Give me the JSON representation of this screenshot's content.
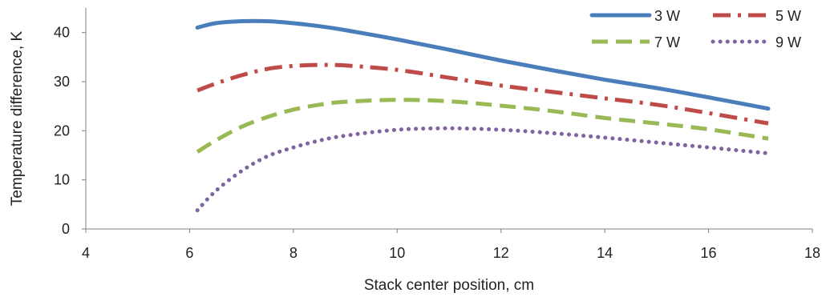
{
  "chart_data": {
    "type": "line",
    "title": "",
    "xlabel": "Stack center position, cm",
    "ylabel": "Temperature difference, K",
    "xlim": [
      4,
      18
    ],
    "ylim": [
      0,
      45
    ],
    "xticks": [
      4,
      6,
      8,
      10,
      12,
      14,
      16,
      18
    ],
    "yticks": [
      0,
      10,
      20,
      30,
      40
    ],
    "grid": false,
    "legend_position": "top-right",
    "series": [
      {
        "name": "3 W",
        "color": "#4a7ebb",
        "style": "solid",
        "points": [
          [
            6.15,
            41.0
          ],
          [
            6.5,
            41.9
          ],
          [
            7.0,
            42.3
          ],
          [
            7.5,
            42.3
          ],
          [
            8.0,
            41.9
          ],
          [
            8.5,
            41.3
          ],
          [
            9.0,
            40.5
          ],
          [
            10.0,
            38.6
          ],
          [
            11.0,
            36.5
          ],
          [
            12.0,
            34.3
          ],
          [
            13.0,
            32.3
          ],
          [
            14.0,
            30.4
          ],
          [
            15.0,
            28.7
          ],
          [
            16.0,
            26.8
          ],
          [
            17.15,
            24.5
          ]
        ]
      },
      {
        "name": "5 W",
        "color": "#be4b48",
        "style": "dash-dot",
        "points": [
          [
            6.15,
            28.2
          ],
          [
            6.5,
            29.6
          ],
          [
            7.0,
            31.3
          ],
          [
            7.5,
            32.6
          ],
          [
            8.0,
            33.2
          ],
          [
            8.5,
            33.4
          ],
          [
            9.0,
            33.3
          ],
          [
            10.0,
            32.4
          ],
          [
            11.0,
            30.8
          ],
          [
            12.0,
            29.2
          ],
          [
            13.0,
            27.9
          ],
          [
            14.0,
            26.6
          ],
          [
            15.0,
            25.3
          ],
          [
            16.0,
            23.6
          ],
          [
            17.15,
            21.5
          ]
        ]
      },
      {
        "name": "7 W",
        "color": "#98b954",
        "style": "dash",
        "points": [
          [
            6.15,
            15.7
          ],
          [
            6.5,
            18.0
          ],
          [
            7.0,
            20.8
          ],
          [
            7.5,
            22.8
          ],
          [
            8.0,
            24.3
          ],
          [
            8.5,
            25.3
          ],
          [
            9.0,
            25.9
          ],
          [
            10.0,
            26.3
          ],
          [
            11.0,
            26.0
          ],
          [
            12.0,
            25.1
          ],
          [
            13.0,
            24.0
          ],
          [
            14.0,
            22.6
          ],
          [
            15.0,
            21.5
          ],
          [
            16.0,
            20.3
          ],
          [
            17.15,
            18.4
          ]
        ]
      },
      {
        "name": "9 W",
        "color": "#7e64a0",
        "style": "dot",
        "points": [
          [
            6.15,
            3.8
          ],
          [
            6.5,
            7.7
          ],
          [
            7.0,
            11.8
          ],
          [
            7.5,
            14.8
          ],
          [
            8.0,
            16.6
          ],
          [
            8.5,
            18.0
          ],
          [
            9.0,
            19.0
          ],
          [
            10.0,
            20.2
          ],
          [
            11.0,
            20.5
          ],
          [
            12.0,
            20.2
          ],
          [
            13.0,
            19.5
          ],
          [
            14.0,
            18.6
          ],
          [
            15.0,
            17.6
          ],
          [
            16.0,
            16.6
          ],
          [
            17.15,
            15.4
          ]
        ]
      }
    ]
  }
}
